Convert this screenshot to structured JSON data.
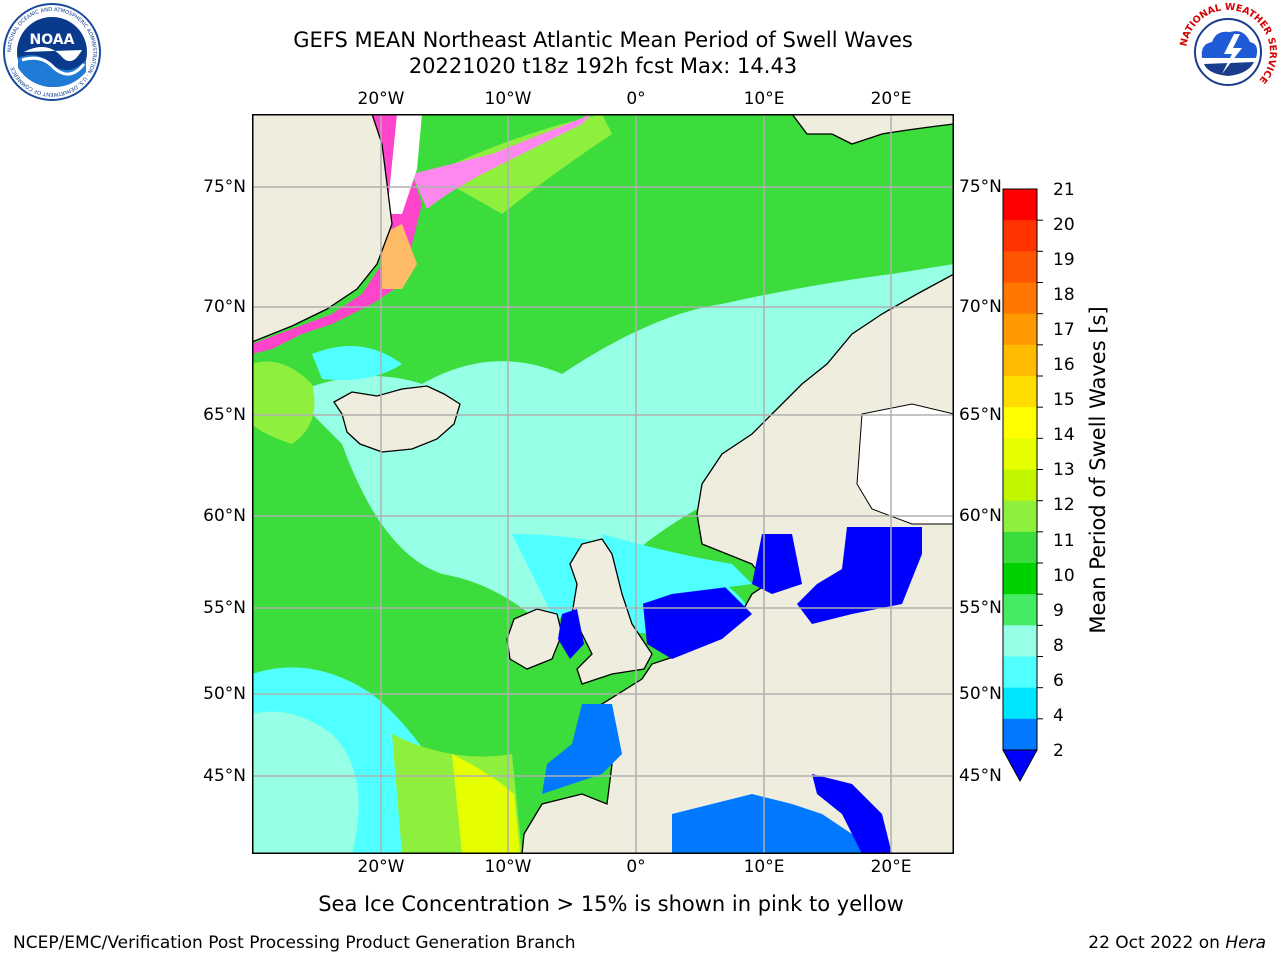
{
  "header": {
    "title_line1": "GEFS MEAN Northeast Atlantic Mean Period of Swell Waves",
    "title_line2": "20221020 t18z 192h fcst   Max: 14.43"
  },
  "logos": {
    "noaa_text": "NOAA",
    "noaa_ring_text": "NATIONAL OCEANIC AND ATMOSPHERIC ADMINISTRATION · U.S. DEPARTMENT OF COMMERCE",
    "nws_ring_text": "NATIONAL WEATHER SERVICE"
  },
  "map": {
    "lon_labels": [
      "20°W",
      "10°W",
      "0°",
      "10°E",
      "20°E"
    ],
    "lat_labels_left": [
      "75°N",
      "70°N",
      "65°N",
      "60°N",
      "55°N",
      "50°N",
      "45°N"
    ],
    "lat_labels_right": [
      "75°N",
      "70°N",
      "65°N",
      "60°N",
      "55°N",
      "50°N",
      "45°N"
    ],
    "land_color": "#efedde",
    "grid_color": "#b0b0b0"
  },
  "colorbar": {
    "label": "Mean Period of Swell Waves [s]",
    "tick_labels": [
      "21",
      "20",
      "19",
      "18",
      "17",
      "16",
      "15",
      "14",
      "13",
      "12",
      "11",
      "10",
      "9",
      "8",
      "6",
      "4",
      "2"
    ],
    "colors": [
      "#ff0000",
      "#ff3300",
      "#ff5500",
      "#ff7700",
      "#ff9900",
      "#ffbb00",
      "#ffdd00",
      "#ffff00",
      "#e6ff00",
      "#c2f500",
      "#8ef03c",
      "#3cdc3c",
      "#00d200",
      "#46eb64",
      "#96ffe6",
      "#50ffff",
      "#00e6ff",
      "#0078ff"
    ],
    "extend_min_color": "#0000ff"
  },
  "caption": "Sea Ice Concentration > 15% is shown in pink to yellow",
  "footer": {
    "left": "NCEP/EMC/Verification Post Processing Product Generation Branch",
    "date": "22 Oct 2022 on ",
    "machine": "Hera"
  }
}
